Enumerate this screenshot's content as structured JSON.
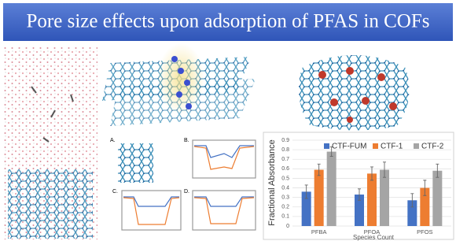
{
  "header": {
    "title": "Pore size effects upon adsorption of PFAS in COFs"
  },
  "panels": [
    "A.",
    "B.",
    "C.",
    "D."
  ],
  "chart_data": {
    "type": "bar",
    "y_label": "Fractional Absorbance",
    "x_label": "Species Count",
    "categories": [
      "PFBA",
      "PFOA",
      "PFOS"
    ],
    "series": [
      {
        "name": "CTF-FUM",
        "color": "#4472c4",
        "values": [
          0.36,
          0.33,
          0.27
        ],
        "errors": [
          0.07,
          0.06,
          0.07
        ]
      },
      {
        "name": "CTF-1",
        "color": "#ed7d31",
        "values": [
          0.59,
          0.55,
          0.4
        ],
        "errors": [
          0.06,
          0.07,
          0.08
        ]
      },
      {
        "name": "CTF-2",
        "color": "#a5a5a5",
        "values": [
          0.78,
          0.59,
          0.58
        ],
        "errors": [
          0.05,
          0.08,
          0.07
        ]
      }
    ],
    "ylim": [
      0,
      0.9
    ],
    "yticks": [
      0,
      0.1,
      0.2,
      0.3,
      0.4,
      0.5,
      0.6,
      0.7,
      0.8,
      0.9
    ],
    "grid": true,
    "legend": "top"
  }
}
